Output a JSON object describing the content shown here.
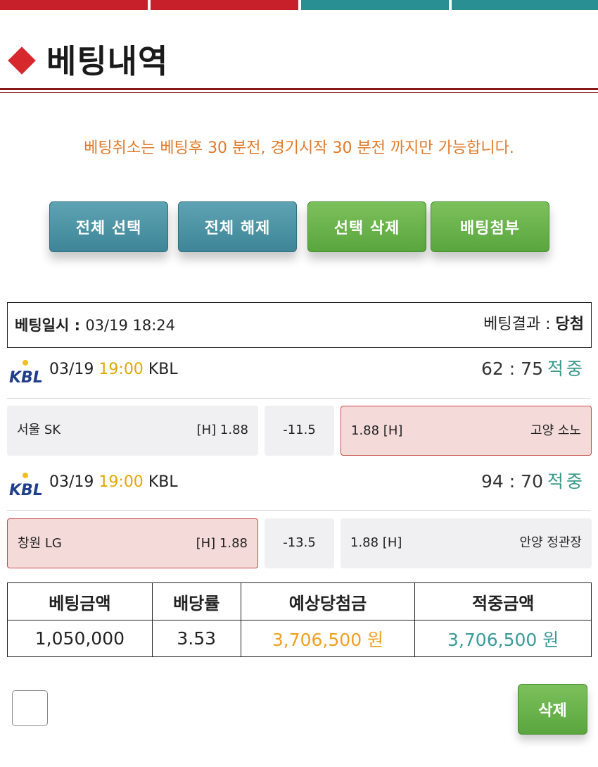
{
  "colors": {
    "top_bar_red": "#c8202a",
    "top_bar_teal": "#2a8f92",
    "diamond": "#d6282d",
    "notice": "#e07a2a",
    "time": "#e0a800",
    "hit": "#3a9a8a",
    "expected": "#f0a020",
    "won": "#3a9a9a"
  },
  "header": {
    "title": "베팅내역"
  },
  "notice": "베팅취소는 베팅후 30 분전, 경기시작 30 분전 까지만 가능합니다.",
  "toolbar": {
    "select_all": "전체 선택",
    "deselect_all": "전체 해제",
    "delete_selected": "선택 삭제",
    "attach_bet": "배팅첨부"
  },
  "bet": {
    "time_label": "베팅일시 : ",
    "time_value": "03/19 18:24",
    "result_label": "베팅결과 : ",
    "result_value": "당첨"
  },
  "games": [
    {
      "logo": "kbl-logo",
      "date": "03/19",
      "time": "19:00",
      "league": "KBL",
      "score": "62 : 75",
      "status": "적중",
      "home": "서울 SK",
      "home_odds": "[H] 1.88",
      "handicap": "-11.5",
      "away_odds": "1.88 [H]",
      "away": "고양 소노",
      "picked": "away"
    },
    {
      "logo": "kbl-logo",
      "date": "03/19",
      "time": "19:00",
      "league": "KBL",
      "score": "94 : 70",
      "status": "적중",
      "home": "창원 LG",
      "home_odds": "[H] 1.88",
      "handicap": "-13.5",
      "away_odds": "1.88 [H]",
      "away": "안양 정관장",
      "picked": "home"
    }
  ],
  "summary": {
    "headers": [
      "베팅금액",
      "배당률",
      "예상당첨금",
      "적중금액"
    ],
    "bet_amount": "1,050,000",
    "odds": "3.53",
    "expected": "3,706,500 원",
    "won": "3,706,500 원"
  },
  "footer": {
    "delete_label": "삭제"
  },
  "logo_text": "KBL"
}
